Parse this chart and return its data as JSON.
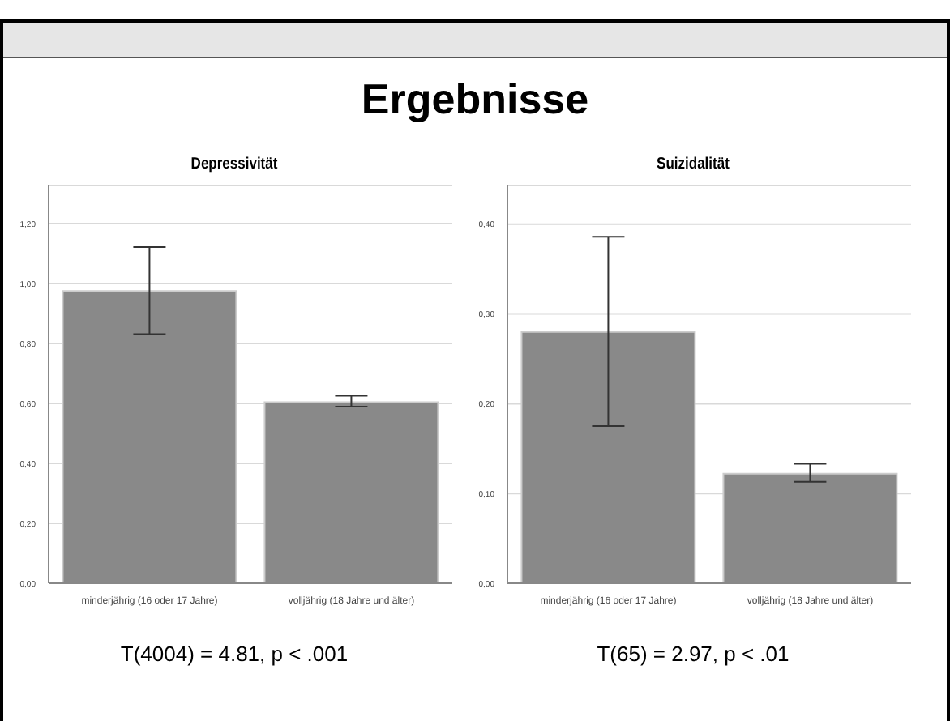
{
  "chart_data": [
    {
      "type": "other",
      "title": "Ergebnisse"
    },
    {
      "type": "bar",
      "title": "Depressivität",
      "categories": [
        "minderjährig (16 oder 17 Jahre)",
        "volljährig (18 Jahre und älter)"
      ],
      "values": [
        0.975,
        0.604
      ],
      "errors": [
        [
          0.831,
          1.122
        ],
        [
          0.589,
          0.626
        ]
      ],
      "color": "#898989",
      "ylim": [
        0,
        1.33
      ],
      "yticks": [
        {
          "value": 0,
          "label": "0,00"
        },
        {
          "value": 0.2,
          "label": "0,20"
        },
        {
          "value": 0.4,
          "label": "0,40"
        },
        {
          "value": 0.6,
          "label": "0,60"
        },
        {
          "value": 0.8,
          "label": "0,80"
        },
        {
          "value": 1,
          "label": "1,00"
        },
        {
          "value": 1.2,
          "label": "1,20"
        }
      ],
      "grid": "y",
      "annotations": [
        "T(4004) = 4.81, p < .001"
      ]
    },
    {
      "type": "bar",
      "title": "Suizidalität",
      "categories": [
        "minderjährig (16 oder 17 Jahre)",
        "volljährig (18 Jahre und älter)"
      ],
      "values": [
        0.28,
        0.122
      ],
      "errors": [
        [
          0.175,
          0.386
        ],
        [
          0.113,
          0.133
        ]
      ],
      "color": "#898989",
      "ylim": [
        0,
        0.444
      ],
      "yticks": [
        {
          "value": 0,
          "label": "0,00"
        },
        {
          "value": 0.1,
          "label": "0,10"
        },
        {
          "value": 0.2,
          "label": "0,20"
        },
        {
          "value": 0.3,
          "label": "0,30"
        },
        {
          "value": 0.4,
          "label": "0,40"
        }
      ],
      "grid": "y",
      "annotations": [
        "T(65) = 2.97, p < .01"
      ]
    }
  ]
}
